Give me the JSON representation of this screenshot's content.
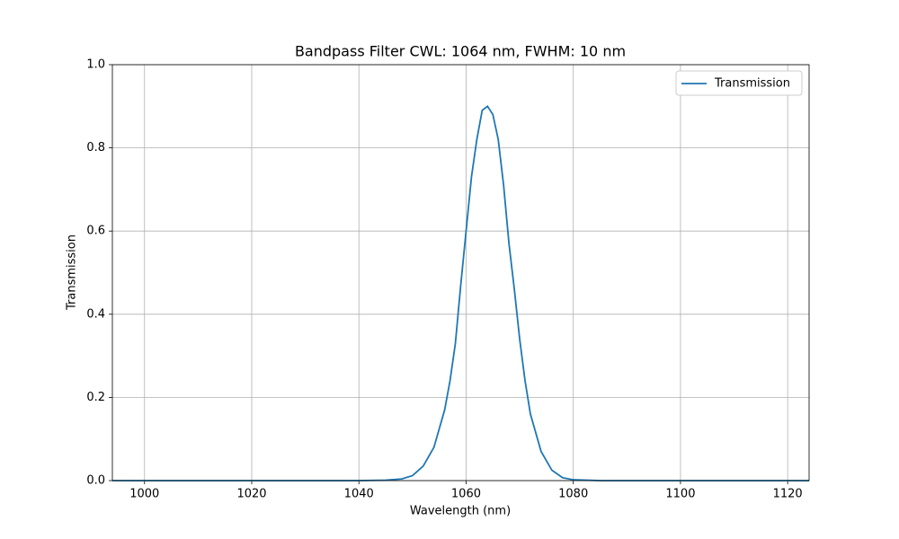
{
  "chart_data": {
    "type": "line",
    "title": "Bandpass Filter CWL: 1064 nm, FWHM: 10 nm",
    "x_label": "Wavelength (nm)",
    "y_label": "Transmission",
    "x": [
      994,
      1000,
      1010,
      1020,
      1030,
      1040,
      1045,
      1048,
      1050,
      1052,
      1054,
      1056,
      1057,
      1058,
      1059,
      1060,
      1061,
      1062,
      1063,
      1064,
      1065,
      1066,
      1067,
      1068,
      1069,
      1070,
      1071,
      1072,
      1074,
      1076,
      1078,
      1080,
      1085,
      1090,
      1100,
      1110,
      1124
    ],
    "series": [
      {
        "name": "Transmission",
        "color": "#1f77b4",
        "values": [
          0,
          0,
          0,
          0,
          0,
          0,
          0.001,
          0.004,
          0.012,
          0.035,
          0.08,
          0.17,
          0.24,
          0.33,
          0.47,
          0.6,
          0.73,
          0.82,
          0.89,
          0.9,
          0.88,
          0.82,
          0.71,
          0.57,
          0.46,
          0.34,
          0.24,
          0.16,
          0.07,
          0.025,
          0.007,
          0.002,
          0,
          0,
          0,
          0,
          0
        ]
      }
    ],
    "xlim": [
      994,
      1124
    ],
    "xticks": [
      1000,
      1020,
      1040,
      1060,
      1080,
      1100,
      1120
    ],
    "ylim": [
      0,
      1
    ],
    "yticks": [
      {
        "value": 0,
        "label": "0.0"
      },
      0.2,
      0.4,
      0.6,
      0.8,
      {
        "value": 1,
        "label": "1.0"
      }
    ],
    "grid": true,
    "legend": "upper-right"
  }
}
